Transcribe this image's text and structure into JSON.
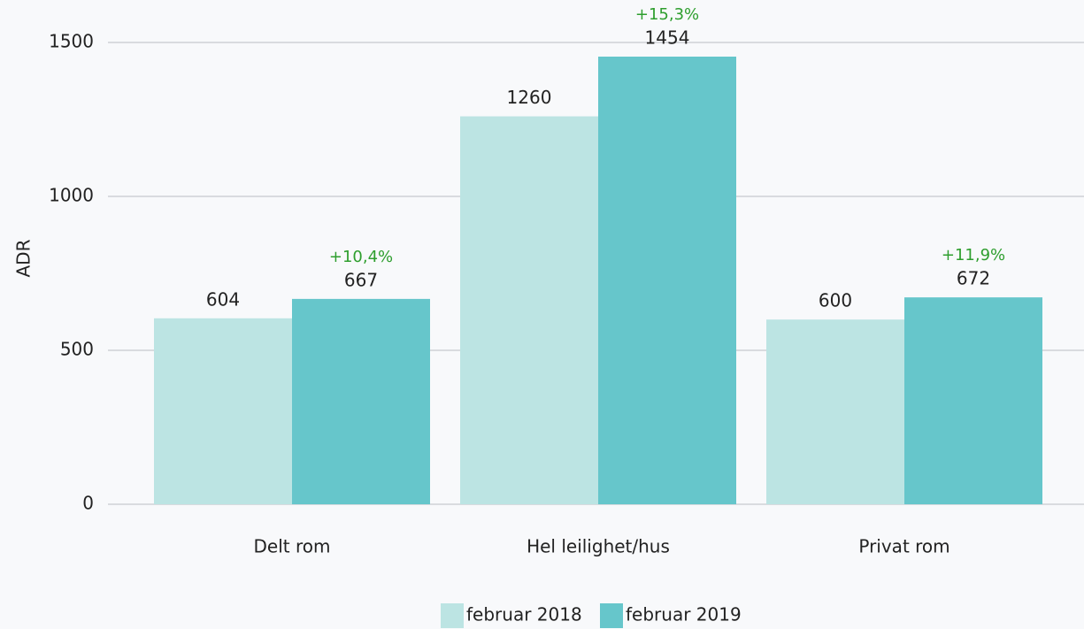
{
  "chart_data": {
    "type": "bar",
    "y_label": "ADR",
    "categories": [
      "Delt rom",
      "Hel leilighet/hus",
      "Privat rom"
    ],
    "series": [
      {
        "name": "februar 2018",
        "color": "#bce4e3",
        "values": [
          604,
          1260,
          600
        ]
      },
      {
        "name": "februar 2019",
        "color": "#66c6cb",
        "values": [
          667,
          1454,
          672
        ]
      }
    ],
    "annotations": [
      "+10,4%",
      "+15,3%",
      "+11,9%"
    ],
    "annotation_color": "#2e9e2e",
    "ylim": [
      0,
      1500
    ],
    "yticks": [
      0,
      500,
      1000,
      1500
    ],
    "grid": true,
    "legend": "bottom"
  }
}
